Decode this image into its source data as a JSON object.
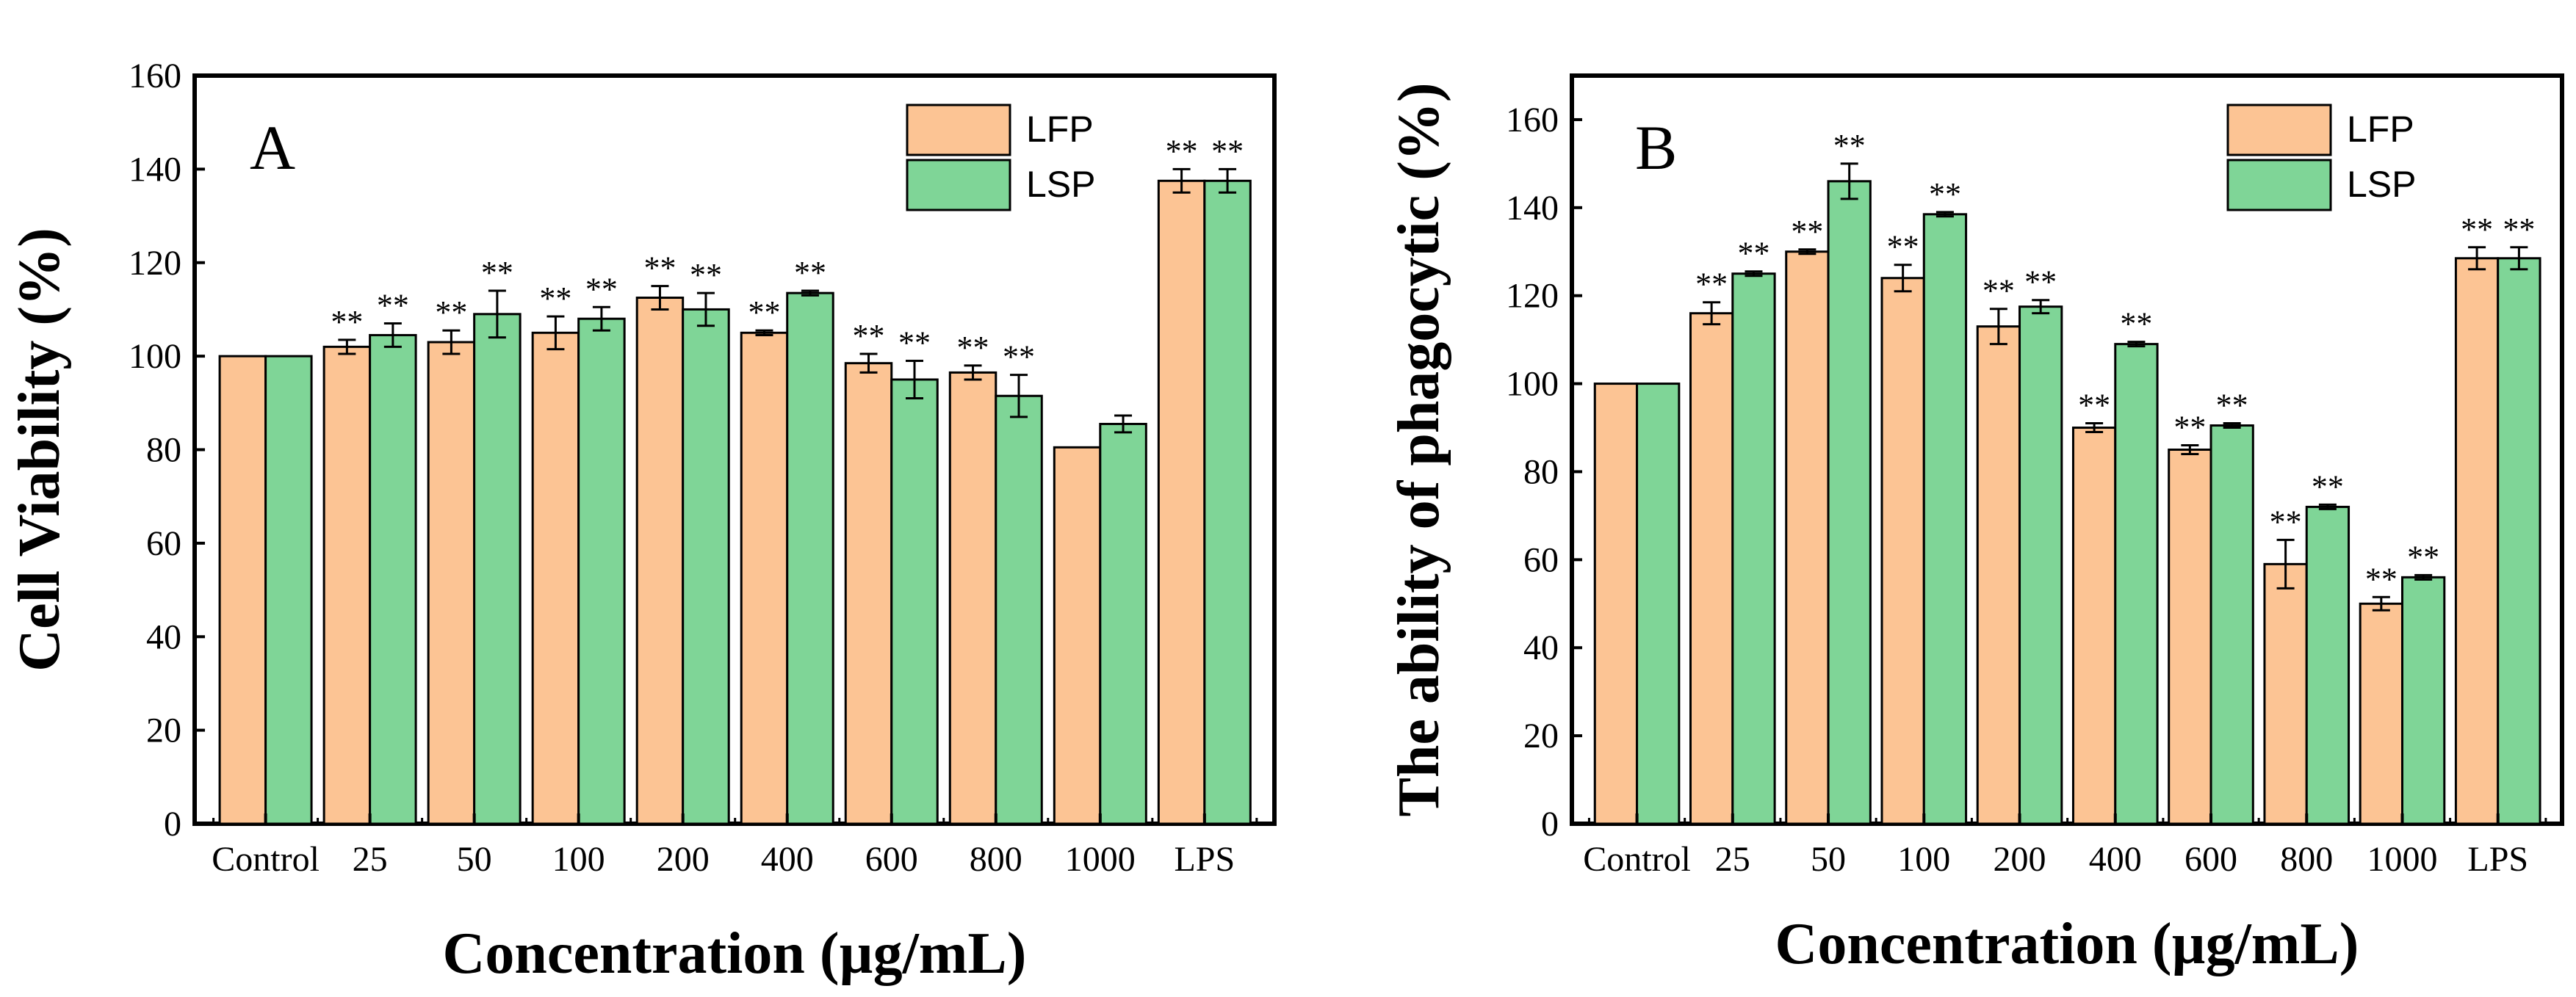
{
  "colors": {
    "LFP": "#fcc494",
    "LSP": "#7fd597",
    "axis": "#000000"
  },
  "chart_data": [
    {
      "type": "bar",
      "panel": "A",
      "title": "",
      "xlabel": "Concentration (µg/mL)",
      "ylabel": "Cell Viability (%)",
      "ylim": [
        0,
        160
      ],
      "yticks": [
        0,
        20,
        40,
        60,
        80,
        100,
        120,
        140,
        160
      ],
      "categories": [
        "Control",
        "25",
        "50",
        "100",
        "200",
        "400",
        "600",
        "800",
        "1000",
        "LPS"
      ],
      "legend_position": "top-right",
      "series": [
        {
          "name": "LFP",
          "values": [
            100,
            102,
            103,
            105,
            112.5,
            105,
            98.5,
            96.5,
            80.5,
            137.5
          ],
          "errors": [
            0,
            1.5,
            2.5,
            3.5,
            2.5,
            0.5,
            2,
            1.5,
            0,
            2.5
          ],
          "sig": [
            "",
            "**",
            "**",
            "**",
            "**",
            "**",
            "**",
            "**",
            "",
            "**"
          ]
        },
        {
          "name": "LSP",
          "values": [
            100,
            104.5,
            109,
            108,
            110,
            113.5,
            95,
            91.5,
            85.5,
            137.5
          ],
          "errors": [
            0,
            2.5,
            5,
            2.5,
            3.5,
            0.5,
            4,
            4.5,
            1.8,
            2.5
          ],
          "sig": [
            "",
            "**",
            "**",
            "**",
            "**",
            "**",
            "**",
            "**",
            "",
            "**"
          ]
        }
      ]
    },
    {
      "type": "bar",
      "panel": "B",
      "title": "",
      "xlabel": "Concentration (µg/mL)",
      "ylabel": "The ability of phagocytic (%)",
      "ylim": [
        0,
        170
      ],
      "yticks": [
        0,
        20,
        40,
        60,
        80,
        100,
        120,
        140,
        160
      ],
      "categories": [
        "Control",
        "25",
        "50",
        "100",
        "200",
        "400",
        "600",
        "800",
        "1000",
        "LPS"
      ],
      "legend_position": "top-right",
      "series": [
        {
          "name": "LFP",
          "values": [
            100,
            116,
            130,
            124,
            113,
            90,
            85,
            59,
            50,
            128.5
          ],
          "errors": [
            0,
            2.5,
            0.5,
            3,
            4,
            1,
            1,
            5.5,
            1.5,
            2.5
          ],
          "sig": [
            "",
            "**",
            "**",
            "**",
            "**",
            "**",
            "**",
            "**",
            "**",
            "**"
          ]
        },
        {
          "name": "LSP",
          "values": [
            100,
            125,
            146,
            138.5,
            117.5,
            109,
            90.5,
            72,
            56,
            128.5
          ],
          "errors": [
            0,
            0.5,
            4,
            0.5,
            1.5,
            0.5,
            0.5,
            0.5,
            0.5,
            2.5
          ],
          "sig": [
            "",
            "**",
            "**",
            "**",
            "**",
            "**",
            "**",
            "**",
            "**",
            "**"
          ]
        }
      ]
    }
  ]
}
